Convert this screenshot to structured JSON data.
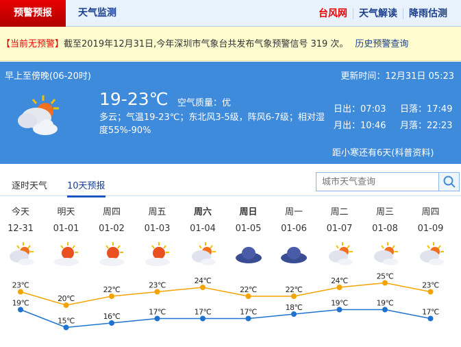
{
  "header": {
    "active_tab": "预警预报",
    "tab2": "天气监测",
    "links": [
      "台风网",
      "天气解读",
      "降雨估测"
    ]
  },
  "warning": {
    "status": "【当前无预警】",
    "text": "截至2019年12月31日,今年深圳市气象台共发布气象预警信号 319 次。",
    "history_link": "历史预警查询"
  },
  "today": {
    "period": "早上至傍晚(06-20时)",
    "update": "更新时间：12月31日 05:23",
    "temp": "19-23℃",
    "aq_label": "空气质量：",
    "aq_value": "优",
    "desc": "多云；气温19-23℃；东北风3-5级，阵风6-7级；相对湿度55%-90%",
    "sunrise": "日出：07:03",
    "sunset": "日落：17:49",
    "moonrise": "月出：10:46",
    "moonset": "月落：22:23",
    "solar_term": "距小寒还有6天(科普资料)",
    "icon": "partly-cloudy-icon"
  },
  "tabs": [
    {
      "label": "逐时天气",
      "active": false
    },
    {
      "label": "10天预报",
      "active": true
    }
  ],
  "search": {
    "placeholder": "城市天气查询"
  },
  "colors": {
    "high": "#f5a300",
    "low": "#1f72d0",
    "accent": "#3f8bdb"
  },
  "forecast": [
    {
      "day": "今天",
      "date": "12-31",
      "icon": "cloudy-sun",
      "high": 23,
      "low": 19,
      "high_label": "23℃",
      "low_label": "19℃"
    },
    {
      "day": "明天",
      "date": "01-01",
      "icon": "sunny-cloud",
      "high": 20,
      "low": 15,
      "high_label": "20℃",
      "low_label": "15℃"
    },
    {
      "day": "周四",
      "date": "01-02",
      "icon": "sunny-cloud",
      "high": 22,
      "low": 16,
      "high_label": "22℃",
      "low_label": "16℃"
    },
    {
      "day": "周五",
      "date": "01-03",
      "icon": "sunny-cloud",
      "high": 23,
      "low": 17,
      "high_label": "23℃",
      "low_label": "17℃"
    },
    {
      "day": "周六",
      "date": "01-04",
      "icon": "cloudy-sun",
      "high": 24,
      "low": 17,
      "high_label": "24℃",
      "low_label": "17℃",
      "bold": true
    },
    {
      "day": "周日",
      "date": "01-05",
      "icon": "overcast",
      "high": 22,
      "low": 17,
      "high_label": "22℃",
      "low_label": "17℃",
      "bold": true
    },
    {
      "day": "周一",
      "date": "01-06",
      "icon": "overcast",
      "high": 22,
      "low": 18,
      "high_label": "22℃",
      "low_label": "18℃"
    },
    {
      "day": "周二",
      "date": "01-07",
      "icon": "cloudy-sun",
      "high": 24,
      "low": 19,
      "high_label": "24℃",
      "low_label": "19℃"
    },
    {
      "day": "周三",
      "date": "01-08",
      "icon": "cloudy-sun",
      "high": 25,
      "low": 19,
      "high_label": "25℃",
      "low_label": "19℃"
    },
    {
      "day": "周四",
      "date": "01-09",
      "icon": "cloudy-sun",
      "high": 23,
      "low": 17,
      "high_label": "23℃",
      "low_label": "17℃"
    }
  ]
}
